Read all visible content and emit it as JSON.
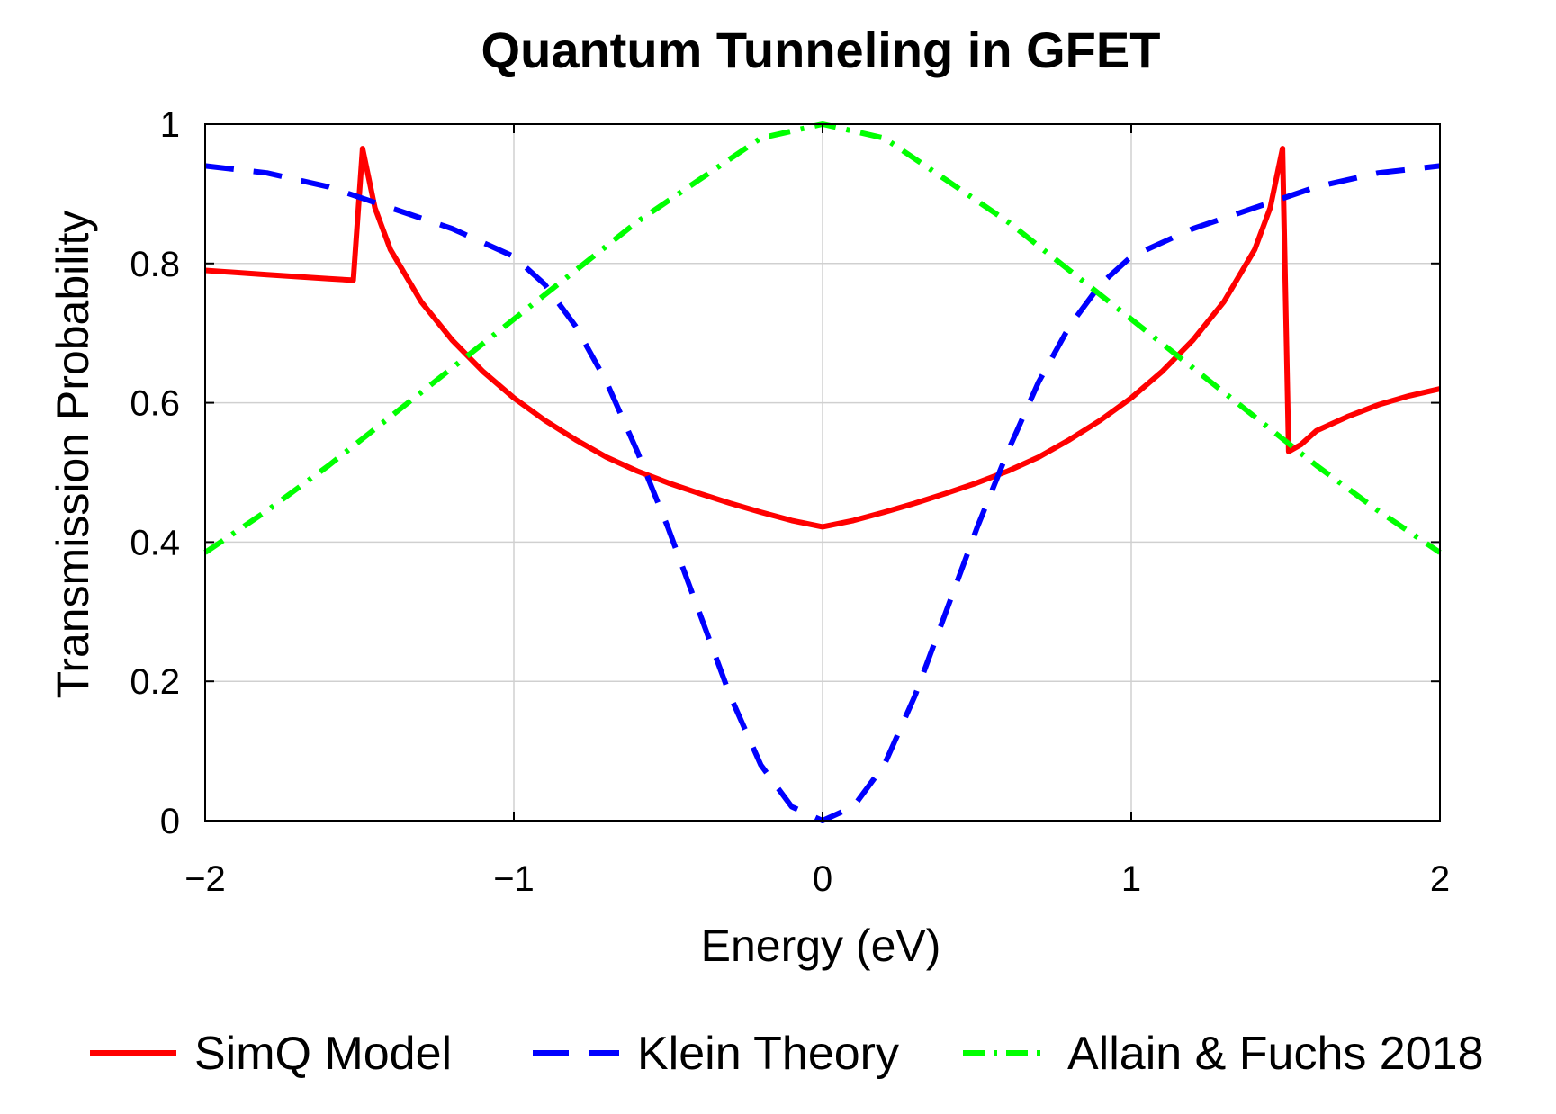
{
  "chart_data": {
    "type": "line",
    "title": "Quantum Tunneling in GFET",
    "xlabel": "Energy (eV)",
    "ylabel": "Transmission Probability",
    "xlim": [
      -2,
      2
    ],
    "ylim": [
      0,
      1
    ],
    "xticks": [
      -2,
      -1,
      0,
      1,
      2
    ],
    "xtick_labels": [
      "−2",
      "−1",
      "0",
      "1",
      "2"
    ],
    "yticks": [
      0,
      0.2,
      0.4,
      0.6,
      0.8,
      1
    ],
    "ytick_labels": [
      "0",
      "0.2",
      "0.4",
      "0.6",
      "0.8",
      "1"
    ],
    "grid": true,
    "legend_position": "bottom",
    "series": [
      {
        "name": "SimQ Model",
        "color": "#ff0000",
        "style": "solid",
        "points": [
          [
            -2.0,
            0.79
          ],
          [
            -1.8,
            0.784
          ],
          [
            -1.6,
            0.778
          ],
          [
            -1.52,
            0.776
          ],
          [
            -1.49,
            0.965
          ],
          [
            -1.45,
            0.88
          ],
          [
            -1.4,
            0.82
          ],
          [
            -1.3,
            0.745
          ],
          [
            -1.2,
            0.69
          ],
          [
            -1.1,
            0.645
          ],
          [
            -1.0,
            0.607
          ],
          [
            -0.9,
            0.575
          ],
          [
            -0.8,
            0.547
          ],
          [
            -0.7,
            0.522
          ],
          [
            -0.6,
            0.502
          ],
          [
            -0.5,
            0.485
          ],
          [
            -0.4,
            0.47
          ],
          [
            -0.3,
            0.456
          ],
          [
            -0.2,
            0.443
          ],
          [
            -0.1,
            0.431
          ],
          [
            0.0,
            0.422
          ],
          [
            0.1,
            0.431
          ],
          [
            0.2,
            0.443
          ],
          [
            0.3,
            0.456
          ],
          [
            0.4,
            0.47
          ],
          [
            0.5,
            0.485
          ],
          [
            0.6,
            0.502
          ],
          [
            0.7,
            0.522
          ],
          [
            0.8,
            0.547
          ],
          [
            0.9,
            0.575
          ],
          [
            1.0,
            0.607
          ],
          [
            1.1,
            0.645
          ],
          [
            1.2,
            0.69
          ],
          [
            1.3,
            0.745
          ],
          [
            1.4,
            0.82
          ],
          [
            1.45,
            0.88
          ],
          [
            1.49,
            0.965
          ],
          [
            1.51,
            0.53
          ],
          [
            1.55,
            0.54
          ],
          [
            1.6,
            0.56
          ],
          [
            1.7,
            0.58
          ],
          [
            1.8,
            0.597
          ],
          [
            1.9,
            0.61
          ],
          [
            2.0,
            0.62
          ]
        ]
      },
      {
        "name": "Klein Theory",
        "color": "#0000ff",
        "style": "dashed",
        "points": [
          [
            -2.0,
            0.94
          ],
          [
            -1.8,
            0.93
          ],
          [
            -1.6,
            0.91
          ],
          [
            -1.4,
            0.88
          ],
          [
            -1.2,
            0.85
          ],
          [
            -1.0,
            0.81
          ],
          [
            -0.9,
            0.77
          ],
          [
            -0.8,
            0.71
          ],
          [
            -0.7,
            0.63
          ],
          [
            -0.6,
            0.53
          ],
          [
            -0.5,
            0.42
          ],
          [
            -0.4,
            0.3
          ],
          [
            -0.3,
            0.18
          ],
          [
            -0.2,
            0.08
          ],
          [
            -0.1,
            0.02
          ],
          [
            0.0,
            0.0
          ],
          [
            0.1,
            0.02
          ],
          [
            0.2,
            0.08
          ],
          [
            0.3,
            0.18
          ],
          [
            0.4,
            0.3
          ],
          [
            0.5,
            0.42
          ],
          [
            0.6,
            0.53
          ],
          [
            0.7,
            0.63
          ],
          [
            0.8,
            0.71
          ],
          [
            0.9,
            0.77
          ],
          [
            1.0,
            0.81
          ],
          [
            1.2,
            0.85
          ],
          [
            1.4,
            0.88
          ],
          [
            1.6,
            0.91
          ],
          [
            1.8,
            0.93
          ],
          [
            2.0,
            0.94
          ]
        ]
      },
      {
        "name": "Allain & Fuchs 2018",
        "color": "#00ff00",
        "style": "dashdot",
        "points": [
          [
            -2.0,
            0.385
          ],
          [
            -1.8,
            0.445
          ],
          [
            -1.6,
            0.51
          ],
          [
            -1.4,
            0.58
          ],
          [
            -1.2,
            0.65
          ],
          [
            -1.0,
            0.72
          ],
          [
            -0.8,
            0.79
          ],
          [
            -0.6,
            0.86
          ],
          [
            -0.4,
            0.92
          ],
          [
            -0.2,
            0.98
          ],
          [
            0.0,
            1.0
          ],
          [
            0.2,
            0.98
          ],
          [
            0.4,
            0.92
          ],
          [
            0.6,
            0.86
          ],
          [
            0.8,
            0.79
          ],
          [
            1.0,
            0.72
          ],
          [
            1.2,
            0.65
          ],
          [
            1.4,
            0.58
          ],
          [
            1.6,
            0.51
          ],
          [
            1.8,
            0.445
          ],
          [
            2.0,
            0.385
          ]
        ]
      }
    ]
  }
}
